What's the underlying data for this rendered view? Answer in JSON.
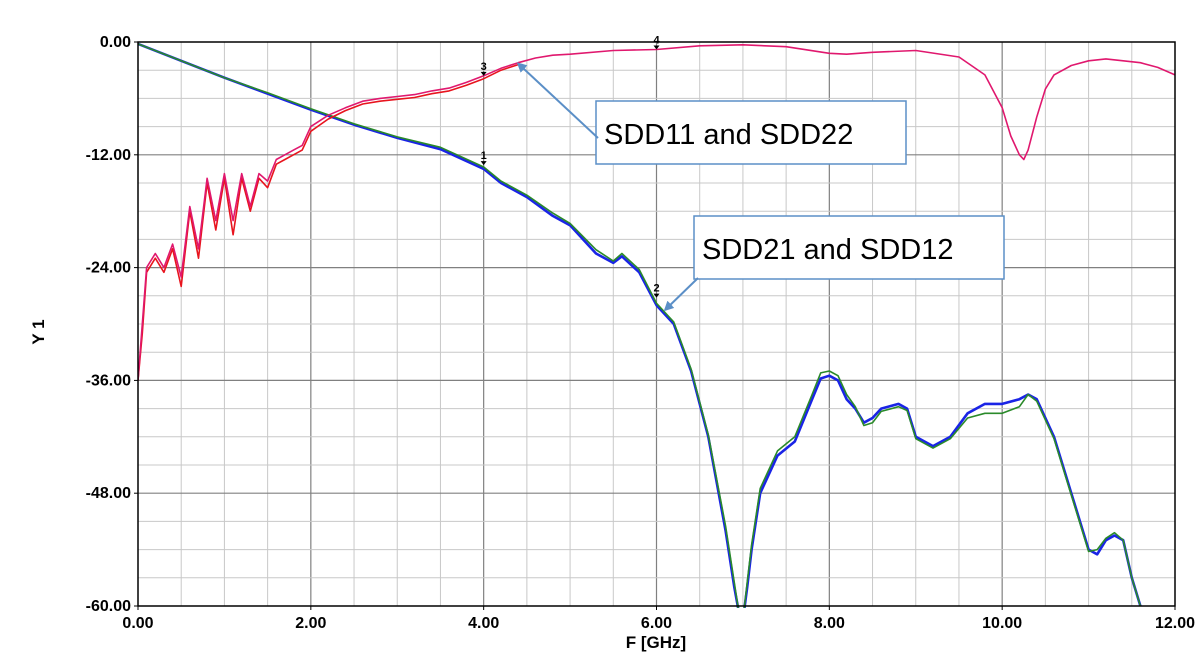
{
  "chart_data": {
    "type": "line",
    "title": "",
    "xlabel": "F [GHz]",
    "ylabel": "Y 1",
    "xlim": [
      0,
      12
    ],
    "ylim": [
      -60,
      0
    ],
    "x_ticks": [
      "0.00",
      "2.00",
      "4.00",
      "6.00",
      "8.00",
      "10.00",
      "12.00"
    ],
    "y_ticks": [
      "0.00",
      "-12.00",
      "-24.00",
      "-36.00",
      "-48.00",
      "-60.00"
    ],
    "grid": true,
    "colors": {
      "sdd11": "#e0186e",
      "sdd22": "#e8141e",
      "sdd21": "#1a24e6",
      "sdd12": "#2a8a2a",
      "callout_border": "#5b8fc7",
      "callout_arrow": "#5b8fc7"
    },
    "series": [
      {
        "color_key": "sdd11",
        "x": [
          0.0,
          0.05,
          0.1,
          0.2,
          0.3,
          0.4,
          0.5,
          0.6,
          0.7,
          0.8,
          0.9,
          1.0,
          1.1,
          1.2,
          1.3,
          1.4,
          1.5,
          1.6,
          1.7,
          1.8,
          1.9,
          2.0,
          2.2,
          2.4,
          2.6,
          2.8,
          3.0,
          3.2,
          3.4,
          3.6,
          3.8,
          4.0,
          4.2,
          4.4,
          4.6,
          4.8,
          5.0,
          5.5,
          6.0,
          6.5,
          7.0,
          7.5,
          8.0,
          8.2,
          8.5,
          9.0,
          9.5,
          9.8,
          10.0,
          10.1,
          10.2,
          10.25,
          10.3,
          10.4,
          10.5,
          10.6,
          10.8,
          11.0,
          11.2,
          11.4,
          11.6,
          11.8,
          12.0
        ],
        "y": [
          -36.0,
          -30.0,
          -24.0,
          -22.5,
          -24.0,
          -21.5,
          -25.0,
          -17.5,
          -22.0,
          -14.5,
          -19.0,
          -14.0,
          -19.0,
          -14.0,
          -17.5,
          -14.0,
          -14.8,
          -12.5,
          -12.0,
          -11.5,
          -11.0,
          -9.0,
          -7.8,
          -7.0,
          -6.3,
          -6.0,
          -5.8,
          -5.6,
          -5.2,
          -4.9,
          -4.3,
          -3.6,
          -2.8,
          -2.2,
          -1.7,
          -1.4,
          -1.3,
          -0.9,
          -0.8,
          -0.4,
          -0.3,
          -0.5,
          -1.2,
          -1.3,
          -1.1,
          -0.9,
          -1.6,
          -3.5,
          -7.0,
          -10.0,
          -12.0,
          -12.5,
          -11.5,
          -8.0,
          -5.0,
          -3.5,
          -2.5,
          -2.0,
          -1.8,
          -2.0,
          -2.2,
          -2.7,
          -3.5
        ]
      },
      {
        "color_key": "sdd22",
        "x": [
          0.0,
          0.05,
          0.1,
          0.2,
          0.3,
          0.4,
          0.5,
          0.6,
          0.7,
          0.8,
          0.9,
          1.0,
          1.1,
          1.2,
          1.3,
          1.4,
          1.5,
          1.6,
          1.7,
          1.8,
          1.9,
          2.0,
          2.2,
          2.4,
          2.6,
          2.8,
          3.0,
          3.2,
          3.4,
          3.6,
          3.8,
          4.0,
          4.2,
          4.4
        ],
        "y": [
          -36.0,
          -31.0,
          -24.5,
          -23.0,
          -24.5,
          -22.0,
          -26.0,
          -18.0,
          -23.0,
          -15.0,
          -20.0,
          -14.5,
          -20.5,
          -14.5,
          -18.0,
          -14.5,
          -15.5,
          -13.0,
          -12.5,
          -12.0,
          -11.5,
          -9.5,
          -8.2,
          -7.3,
          -6.6,
          -6.3,
          -6.1,
          -5.9,
          -5.5,
          -5.2,
          -4.6,
          -3.9,
          -3.0,
          -2.4
        ]
      },
      {
        "color_key": "sdd21",
        "x": [
          0.0,
          0.5,
          1.0,
          1.5,
          2.0,
          2.5,
          3.0,
          3.5,
          4.0,
          4.2,
          4.5,
          4.8,
          5.0,
          5.3,
          5.5,
          5.6,
          5.8,
          6.0,
          6.2,
          6.4,
          6.6,
          6.8,
          6.9,
          6.95,
          7.0,
          7.05,
          7.1,
          7.2,
          7.4,
          7.6,
          7.8,
          7.9,
          8.0,
          8.1,
          8.2,
          8.3,
          8.4,
          8.5,
          8.6,
          8.8,
          8.9,
          9.0,
          9.2,
          9.4,
          9.6,
          9.8,
          10.0,
          10.2,
          10.3,
          10.4,
          10.6,
          10.8,
          11.0,
          11.1,
          11.2,
          11.3,
          11.4,
          11.5,
          11.6
        ],
        "y": [
          -0.2,
          -2.0,
          -3.8,
          -5.5,
          -7.2,
          -8.8,
          -10.2,
          -11.4,
          -13.5,
          -15.0,
          -16.5,
          -18.5,
          -19.5,
          -22.5,
          -23.5,
          -22.8,
          -24.5,
          -28.0,
          -30.0,
          -35.0,
          -42.0,
          -52.0,
          -58.0,
          -60.5,
          -61.5,
          -58.0,
          -54.0,
          -48.0,
          -44.0,
          -42.5,
          -38.0,
          -35.8,
          -35.5,
          -36.0,
          -38.0,
          -39.0,
          -40.5,
          -40.0,
          -39.0,
          -38.5,
          -39.0,
          -42.0,
          -43.0,
          -42.0,
          -39.5,
          -38.5,
          -38.5,
          -38.0,
          -37.5,
          -38.0,
          -42.0,
          -48.0,
          -54.0,
          -54.5,
          -53.0,
          -52.5,
          -53.0,
          -57.0,
          -60.0
        ]
      },
      {
        "color_key": "sdd12",
        "x": [
          0.0,
          0.5,
          1.0,
          1.5,
          2.0,
          2.5,
          3.0,
          3.5,
          4.0,
          4.2,
          4.5,
          4.8,
          5.0,
          5.3,
          5.5,
          5.6,
          5.8,
          6.0,
          6.2,
          6.4,
          6.6,
          6.8,
          6.9,
          6.95,
          7.0,
          7.05,
          7.1,
          7.2,
          7.4,
          7.6,
          7.8,
          7.9,
          8.0,
          8.1,
          8.2,
          8.3,
          8.4,
          8.5,
          8.6,
          8.8,
          8.9,
          9.0,
          9.2,
          9.4,
          9.6,
          9.8,
          10.0,
          10.2,
          10.3,
          10.4,
          10.6,
          10.8,
          11.0,
          11.1,
          11.2,
          11.3,
          11.4,
          11.5,
          11.6
        ],
        "y": [
          -0.2,
          -2.0,
          -3.8,
          -5.4,
          -7.1,
          -8.7,
          -10.1,
          -11.2,
          -13.3,
          -14.8,
          -16.3,
          -18.2,
          -19.3,
          -22.1,
          -23.3,
          -22.5,
          -24.2,
          -27.8,
          -29.8,
          -34.8,
          -41.8,
          -51.5,
          -57.5,
          -60.5,
          -61.5,
          -57.5,
          -53.5,
          -47.5,
          -43.5,
          -42.0,
          -37.5,
          -35.2,
          -35.0,
          -35.5,
          -37.5,
          -38.8,
          -40.8,
          -40.5,
          -39.3,
          -38.8,
          -39.2,
          -42.2,
          -43.2,
          -42.2,
          -40.0,
          -39.5,
          -39.5,
          -38.8,
          -37.5,
          -38.2,
          -42.2,
          -48.2,
          -54.2,
          -54.0,
          -52.8,
          -52.2,
          -53.0,
          -57.0,
          -60.0
        ]
      }
    ],
    "markers": [
      {
        "label": "1",
        "x": 4.0,
        "y": -13.1
      },
      {
        "label": "2",
        "x": 6.0,
        "y": -27.2
      },
      {
        "label": "3",
        "x": 4.0,
        "y": -3.6
      },
      {
        "label": "4",
        "x": 6.0,
        "y": -0.8
      }
    ],
    "annotations": [
      {
        "text": "SDD11 and SDD22",
        "points_to": {
          "x": 4.4,
          "y": -2.3
        }
      },
      {
        "text": "SDD21 and SDD12",
        "points_to": {
          "x": 6.1,
          "y": -28.5
        }
      }
    ]
  }
}
